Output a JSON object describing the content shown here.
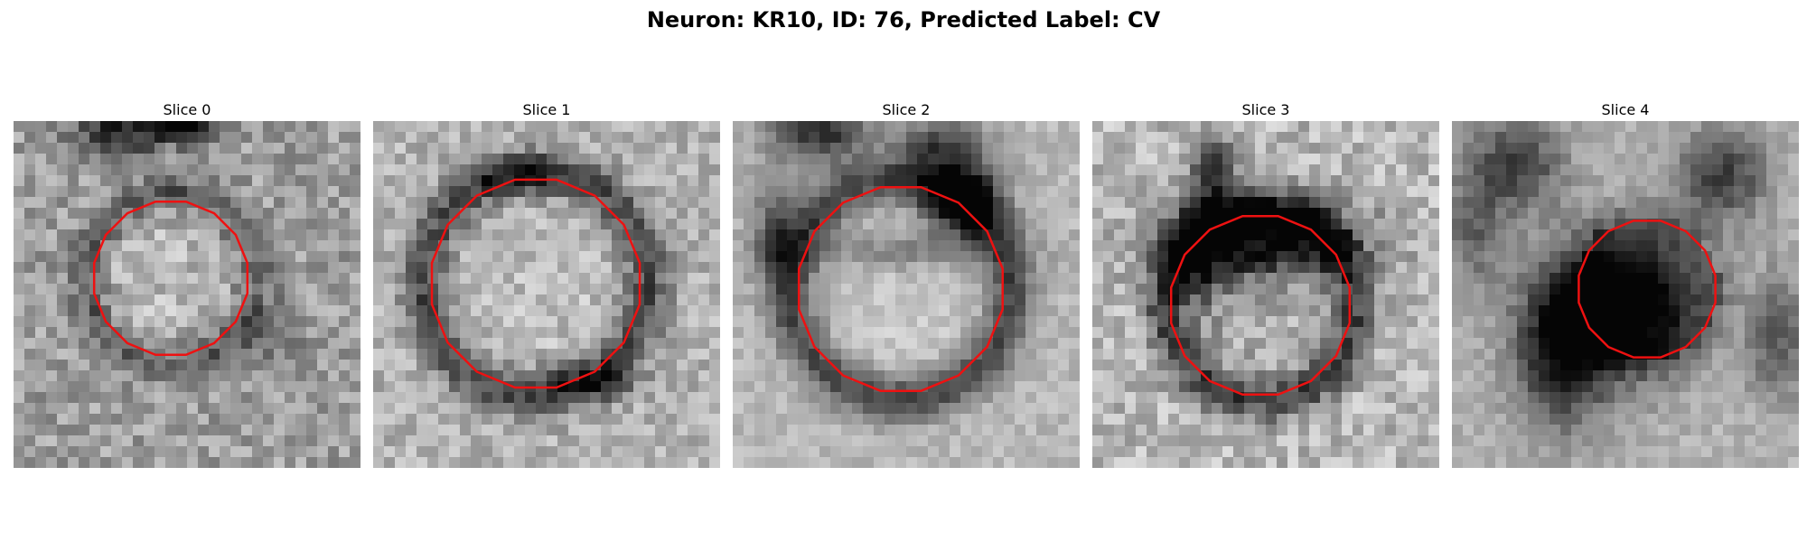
{
  "figure": {
    "title": "Neuron: KR10, ID: 76, Predicted Label: CV"
  },
  "panels": [
    {
      "title": "Slice 0"
    },
    {
      "title": "Slice 1"
    },
    {
      "title": "Slice 2"
    },
    {
      "title": "Slice 3"
    },
    {
      "title": "Slice 4"
    }
  ],
  "colors": {
    "contour": "#ee1111",
    "colormap": "grayscale"
  }
}
